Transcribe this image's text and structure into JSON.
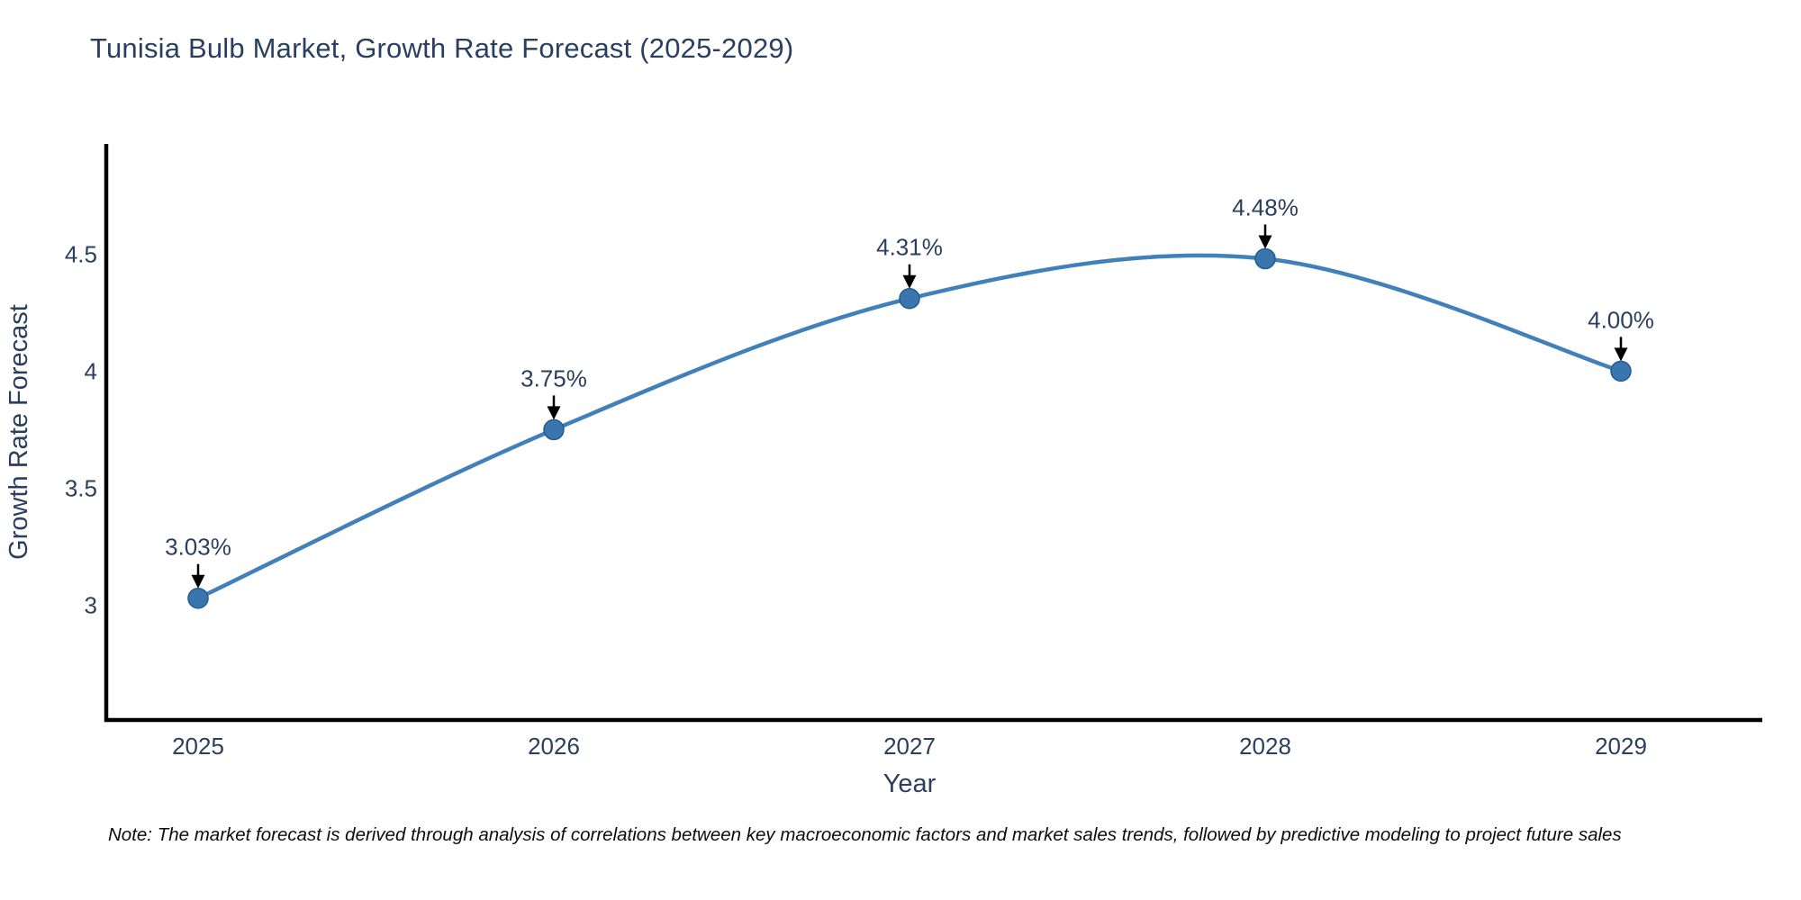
{
  "page": {
    "background": "#ffffff"
  },
  "chart_data": {
    "type": "line",
    "title": "Tunisia Bulb Market, Growth Rate Forecast (2025-2029)",
    "xlabel": "Year",
    "ylabel": "Growth Rate Forecast",
    "categories": [
      "2025",
      "2026",
      "2027",
      "2028",
      "2029"
    ],
    "series": [
      {
        "name": "Growth Rate Forecast",
        "values": [
          3.03,
          3.75,
          4.31,
          4.48,
          4.0
        ]
      }
    ],
    "point_labels": [
      "3.03%",
      "3.75%",
      "4.31%",
      "4.48%",
      "4.00%"
    ],
    "yticks": [
      3,
      3.5,
      4,
      4.5
    ],
    "ytick_labels": [
      "3",
      "3.5",
      "4",
      "4.5"
    ],
    "ylim": [
      2.51,
      4.97
    ],
    "grid": false,
    "legend": false,
    "line_shape": "spline",
    "annotations_have_arrows": true,
    "colors": {
      "line": "#4180b8",
      "marker_fill": "#3a76ad",
      "marker_edge": "#235c8f",
      "axis": "#000000",
      "text": "#2a3f5f",
      "arrow": "#000000",
      "background": "#ffffff"
    }
  },
  "note": {
    "text": "Note: The market forecast is derived through analysis of correlations between key macroeconomic factors and market sales trends, followed by predictive modeling to project future sales"
  }
}
